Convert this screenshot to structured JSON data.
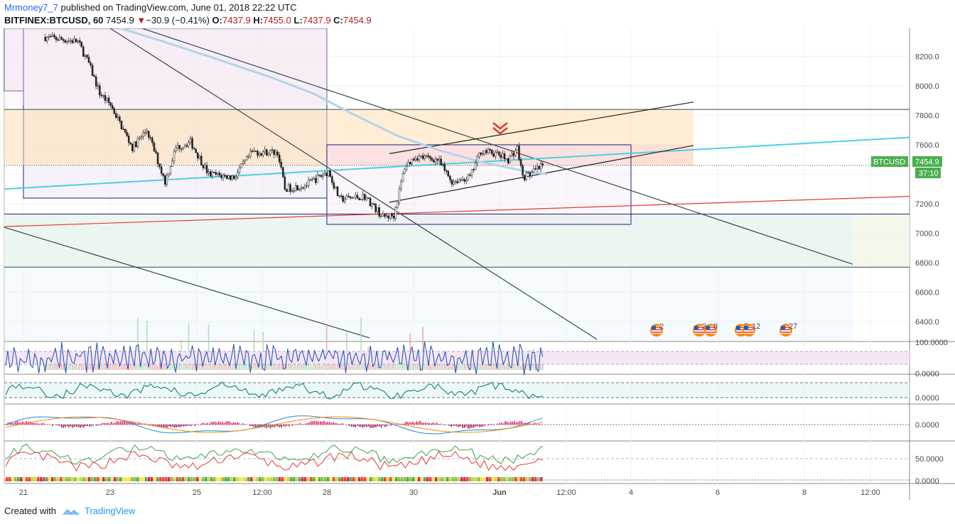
{
  "header": {
    "author": "Mrmoney7_7",
    "published": "published on TradingView.com, June 01, 2018 22:22 UTC",
    "symbol": "BITFINEX:BTCUSD, 60",
    "last": "7454.9",
    "change": "−30.9 (−0.41%)",
    "ohlc": {
      "o_label": "O:",
      "o": "7437.9",
      "h_label": "H:",
      "h": "7455.0",
      "l_label": "L:",
      "l": "7437.9",
      "c_label": "C:",
      "c": "7454.9"
    }
  },
  "footer": {
    "created_with": "Created with",
    "brand": "TradingView"
  },
  "price_tag": {
    "symbol": "BTCUSD",
    "value": "7454.9",
    "countdown": "37:10",
    "color": "#4caf50"
  },
  "colors": {
    "up": "#4caf50",
    "down": "#b71c1c",
    "cyan_line": "#4dd0e1",
    "red_line": "#e53935",
    "ma_line": "#b3d4ea",
    "box_line": "#1a237e",
    "rsi_line": "#1e4db7",
    "rsi_band": "#f3e5f5",
    "osc_line": "#00796b",
    "macd_fast": "#1e88e5",
    "macd_slow": "#fb8c00",
    "dmi_plus": "#43a047",
    "dmi_minus": "#e53935"
  },
  "events": [
    {
      "icon": "us-flag-icon",
      "count": "2"
    },
    {
      "icon": "us-flag-icon",
      "count": "2"
    },
    {
      "icon": "us-flag-icon",
      "count": "8"
    },
    {
      "icon": "us-flag-icon",
      "count": "5"
    },
    {
      "icon": "us-flag-icon",
      "count": "12"
    },
    {
      "icon": "us-flag-icon",
      "count": "27"
    }
  ],
  "chart_data": [
    {
      "type": "candlestick",
      "title": "BITFINEX:BTCUSD, 60",
      "y_ticks": [
        "8200.0",
        "8000.0",
        "7800.0",
        "7600.0",
        "7400.0",
        "7200.0",
        "7000.0",
        "6800.0",
        "6600.0",
        "6400.0"
      ],
      "ylim": [
        6270,
        8380
      ],
      "x_ticks": [
        "21",
        "23",
        "25",
        "12:00",
        "28",
        "30",
        "Jun",
        "12:00",
        "4",
        "6",
        "8",
        "12:00"
      ],
      "last_price": 7454.9,
      "key_levels": [
        7840,
        7460,
        7130,
        6770
      ],
      "approx_close_path": [
        {
          "x": "May 21 12:00",
          "y": 8330
        },
        {
          "x": "May 22 06:00",
          "y": 8300
        },
        {
          "x": "May 22 12:00",
          "y": 8150
        },
        {
          "x": "May 22 18:00",
          "y": 7950
        },
        {
          "x": "May 23 00:00",
          "y": 7870
        },
        {
          "x": "May 23 12:00",
          "y": 7580
        },
        {
          "x": "May 23 20:00",
          "y": 7700
        },
        {
          "x": "May 24 06:00",
          "y": 7350
        },
        {
          "x": "May 24 12:00",
          "y": 7580
        },
        {
          "x": "May 24 20:00",
          "y": 7620
        },
        {
          "x": "May 25 06:00",
          "y": 7400
        },
        {
          "x": "May 25 20:00",
          "y": 7380
        },
        {
          "x": "May 26 06:00",
          "y": 7550
        },
        {
          "x": "May 26 20:00",
          "y": 7550
        },
        {
          "x": "May 27 00:00",
          "y": 7300
        },
        {
          "x": "May 27 12:00",
          "y": 7330
        },
        {
          "x": "May 28 00:00",
          "y": 7420
        },
        {
          "x": "May 28 06:00",
          "y": 7230
        },
        {
          "x": "May 28 20:00",
          "y": 7250
        },
        {
          "x": "May 29 06:00",
          "y": 7110
        },
        {
          "x": "May 29 12:00",
          "y": 7120
        },
        {
          "x": "May 29 18:00",
          "y": 7450
        },
        {
          "x": "May 30 00:00",
          "y": 7520
        },
        {
          "x": "May 30 12:00",
          "y": 7500
        },
        {
          "x": "May 30 20:00",
          "y": 7350
        },
        {
          "x": "May 31 06:00",
          "y": 7380
        },
        {
          "x": "May 31 12:00",
          "y": 7560
        },
        {
          "x": "May 31 20:00",
          "y": 7540
        },
        {
          "x": "Jun 01 03:00",
          "y": 7500
        },
        {
          "x": "Jun 01 08:00",
          "y": 7580
        },
        {
          "x": "Jun 01 11:00",
          "y": 7380
        },
        {
          "x": "Jun 01 16:00",
          "y": 7410
        },
        {
          "x": "Jun 01 22:00",
          "y": 7454.9
        }
      ]
    },
    {
      "type": "line",
      "title": "",
      "y_ticks": [
        "100.0000",
        "0.0000"
      ],
      "series": [
        {
          "name": "",
          "color": "#1e4db7"
        }
      ]
    },
    {
      "type": "line",
      "title": "",
      "y_ticks": [
        "0.0000"
      ],
      "series": [
        {
          "name": "",
          "color": "#00796b"
        }
      ]
    },
    {
      "type": "line",
      "title": "",
      "y_ticks": [
        "0.0000"
      ],
      "series": [
        {
          "name": "",
          "color": "#1e88e5"
        },
        {
          "name": "",
          "color": "#fb8c00"
        }
      ]
    },
    {
      "type": "line",
      "title": "",
      "y_ticks": [
        "50.0000",
        "0.0000"
      ],
      "series": [
        {
          "name": "",
          "color": "#43a047"
        },
        {
          "name": "",
          "color": "#e53935"
        }
      ]
    }
  ]
}
